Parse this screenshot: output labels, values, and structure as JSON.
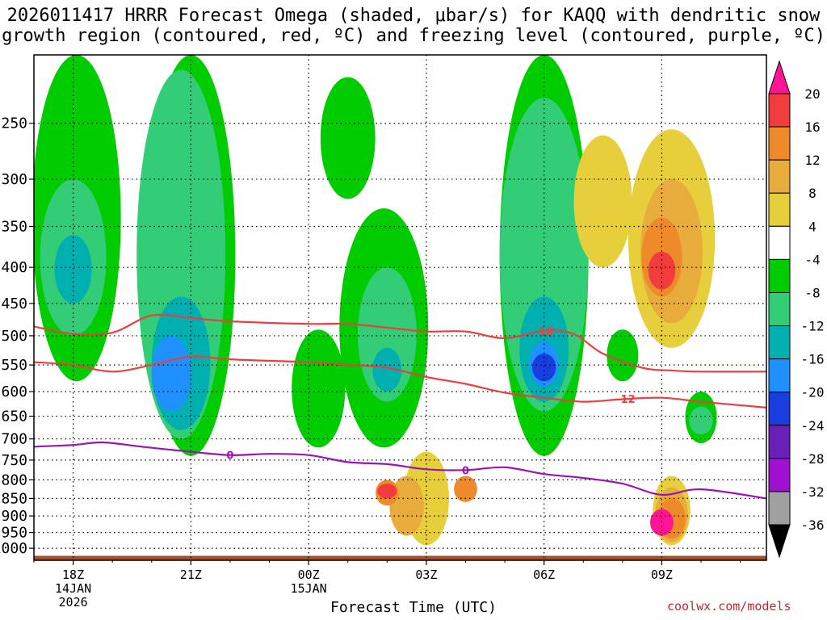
{
  "title_line1": "2026011417 HRRR Forecast Omega (shaded, μbar/s) for KAQQ with dendritic snow",
  "title_line2": "growth region (contoured, red, ºC) and freezing level (contoured, purple, ºC)",
  "xlabel": "Forecast Time (UTC)",
  "credit": "coolwx.com/models",
  "chart_data": {
    "type": "heatmap",
    "title": "2026011417 HRRR Forecast Omega (shaded, μbar/s) for KAQQ with dendritic snow growth region (contoured, red, ºC) and freezing level (contoured, purple, ºC)",
    "xlabel": "Forecast Time (UTC)",
    "ylabel": "",
    "y_scale": "log-pressure (inverted)",
    "xlim": [
      "2026-01-14 17:00",
      "2026-01-15 11:40"
    ],
    "ylim": [
      1040,
      200
    ],
    "grid": true,
    "x_ticks": [
      {
        "label": [
          "18Z",
          "14JAN",
          "2026"
        ],
        "time": "2026-01-14 18:00"
      },
      {
        "label": [
          "21Z"
        ],
        "time": "2026-01-14 21:00"
      },
      {
        "label": [
          "00Z",
          "15JAN"
        ],
        "time": "2026-01-15 00:00"
      },
      {
        "label": [
          "03Z"
        ],
        "time": "2026-01-15 03:00"
      },
      {
        "label": [
          "06Z"
        ],
        "time": "2026-01-15 06:00"
      },
      {
        "label": [
          "09Z"
        ],
        "time": "2026-01-15 09:00"
      }
    ],
    "y_ticks": [
      250,
      300,
      350,
      400,
      450,
      500,
      550,
      600,
      650,
      700,
      750,
      800,
      850,
      900,
      950,
      1000
    ],
    "colorbar": {
      "labels": [
        20,
        16,
        12,
        8,
        4,
        -4,
        -8,
        -12,
        -16,
        -20,
        -24,
        -28,
        -32,
        -36
      ],
      "colors": [
        "#ff1493",
        "#f03c3c",
        "#ef8a2a",
        "#e8ac3c",
        "#e6cf3a",
        "#ffffff",
        "#00cc00",
        "#33cc77",
        "#00b0b0",
        "#1e90ff",
        "#1a3de0",
        "#6a20b8",
        "#a010d0",
        "#a0a0a0",
        "#000000"
      ]
    },
    "omega_regions": [
      {
        "color": "#00cc00",
        "time": "2026-01-14 18:05",
        "p_top": 200,
        "p_bottom": 580
      },
      {
        "color": "#00cc00",
        "time": "2026-01-14 21:00",
        "p_top": 200,
        "p_bottom": 740
      },
      {
        "color": "#33cc77",
        "time": "2026-01-14 18:00",
        "p_top": 300,
        "p_bottom": 500
      },
      {
        "color": "#00b0b0",
        "time": "2026-01-14 18:00",
        "p_top": 360,
        "p_bottom": 450
      },
      {
        "color": "#33cc77",
        "time": "2026-01-14 20:45",
        "p_top": 210,
        "p_bottom": 700
      },
      {
        "color": "#00b0b0",
        "time": "2026-01-14 20:45",
        "p_top": 440,
        "p_bottom": 680
      },
      {
        "color": "#1e90ff",
        "time": "2026-01-14 20:30",
        "p_top": 500,
        "p_bottom": 640
      },
      {
        "color": "#00cc00",
        "time": "2026-01-15 01:00",
        "p_top": 215,
        "p_bottom": 320
      },
      {
        "color": "#00cc00",
        "time": "2026-01-15 00:15",
        "p_top": 490,
        "p_bottom": 720
      },
      {
        "color": "#00cc00",
        "time": "2026-01-15 01:55",
        "p_top": 330,
        "p_bottom": 720
      },
      {
        "color": "#33cc77",
        "time": "2026-01-15 02:00",
        "p_top": 400,
        "p_bottom": 620
      },
      {
        "color": "#00b0b0",
        "time": "2026-01-15 02:00",
        "p_top": 520,
        "p_bottom": 600
      },
      {
        "color": "#00cc00",
        "time": "2026-01-15 06:00",
        "p_top": 200,
        "p_bottom": 740
      },
      {
        "color": "#33cc77",
        "time": "2026-01-15 06:00",
        "p_top": 230,
        "p_bottom": 640
      },
      {
        "color": "#00b0b0",
        "time": "2026-01-15 06:00",
        "p_top": 440,
        "p_bottom": 620
      },
      {
        "color": "#1e90ff",
        "time": "2026-01-15 06:00",
        "p_top": 510,
        "p_bottom": 590
      },
      {
        "color": "#1a3de0",
        "time": "2026-01-15 06:00",
        "p_top": 530,
        "p_bottom": 580
      },
      {
        "color": "#00cc00",
        "time": "2026-01-15 08:00",
        "p_top": 490,
        "p_bottom": 580
      },
      {
        "color": "#00cc00",
        "time": "2026-01-15 10:00",
        "p_top": 600,
        "p_bottom": 710
      },
      {
        "color": "#33cc77",
        "time": "2026-01-15 10:00",
        "p_top": 630,
        "p_bottom": 690
      },
      {
        "color": "#e6cf3a",
        "time": "2026-01-15 07:30",
        "p_top": 260,
        "p_bottom": 400
      },
      {
        "color": "#e6cf3a",
        "time": "2026-01-15 09:15",
        "p_top": 255,
        "p_bottom": 520
      },
      {
        "color": "#e8ac3c",
        "time": "2026-01-15 09:15",
        "p_top": 300,
        "p_bottom": 480
      },
      {
        "color": "#ef8a2a",
        "time": "2026-01-15 09:00",
        "p_top": 340,
        "p_bottom": 440
      },
      {
        "color": "#f03c3c",
        "time": "2026-01-15 09:00",
        "p_top": 380,
        "p_bottom": 430
      },
      {
        "color": "#e6cf3a",
        "time": "2026-01-15 03:00",
        "p_top": 730,
        "p_bottom": 990
      },
      {
        "color": "#e8ac3c",
        "time": "2026-01-15 02:30",
        "p_top": 790,
        "p_bottom": 960
      },
      {
        "color": "#ef8a2a",
        "time": "2026-01-15 02:00",
        "p_top": 800,
        "p_bottom": 870
      },
      {
        "color": "#f03c3c",
        "time": "2026-01-15 02:00",
        "p_top": 810,
        "p_bottom": 850
      },
      {
        "color": "#ef8a2a",
        "time": "2026-01-15 04:00",
        "p_top": 790,
        "p_bottom": 860
      },
      {
        "color": "#e6cf3a",
        "time": "2026-01-15 09:15",
        "p_top": 790,
        "p_bottom": 990
      },
      {
        "color": "#e8ac3c",
        "time": "2026-01-15 09:15",
        "p_top": 820,
        "p_bottom": 980
      },
      {
        "color": "#ef8a2a",
        "time": "2026-01-15 09:15",
        "p_top": 850,
        "p_bottom": 970
      },
      {
        "color": "#ff1493",
        "time": "2026-01-15 09:00",
        "p_top": 880,
        "p_bottom": 960
      }
    ],
    "series": [
      {
        "name": "-18",
        "color": "#e84040",
        "points": [
          [
            "2026-01-14 17:00",
            485
          ],
          [
            "2026-01-14 18:00",
            497
          ],
          [
            "2026-01-14 19:00",
            495
          ],
          [
            "2026-01-14 20:00",
            468
          ],
          [
            "2026-01-14 21:00",
            472
          ],
          [
            "2026-01-14 22:00",
            477
          ],
          [
            "2026-01-15 00:00",
            481
          ],
          [
            "2026-01-15 01:00",
            481
          ],
          [
            "2026-01-15 02:00",
            487
          ],
          [
            "2026-01-15 03:00",
            493
          ],
          [
            "2026-01-15 04:00",
            493
          ],
          [
            "2026-01-15 05:00",
            504
          ],
          [
            "2026-01-15 06:00",
            492
          ],
          [
            "2026-01-15 06:45",
            497
          ],
          [
            "2026-01-15 07:30",
            530
          ],
          [
            "2026-01-15 08:30",
            555
          ],
          [
            "2026-01-15 09:15",
            560
          ],
          [
            "2026-01-15 10:00",
            562
          ],
          [
            "2026-01-15 11:40",
            562
          ]
        ]
      },
      {
        "name": "-12",
        "color": "#e84040",
        "points": [
          [
            "2026-01-14 17:00",
            545
          ],
          [
            "2026-01-14 18:00",
            550
          ],
          [
            "2026-01-14 19:00",
            562
          ],
          [
            "2026-01-14 20:00",
            550
          ],
          [
            "2026-01-14 21:00",
            535
          ],
          [
            "2026-01-14 22:00",
            540
          ],
          [
            "2026-01-15 00:00",
            545
          ],
          [
            "2026-01-15 01:00",
            550
          ],
          [
            "2026-01-15 02:00",
            555
          ],
          [
            "2026-01-15 03:00",
            572
          ],
          [
            "2026-01-15 04:00",
            585
          ],
          [
            "2026-01-15 05:00",
            602
          ],
          [
            "2026-01-15 06:00",
            612
          ],
          [
            "2026-01-15 07:00",
            620
          ],
          [
            "2026-01-15 08:00",
            615
          ],
          [
            "2026-01-15 09:00",
            612
          ],
          [
            "2026-01-15 10:00",
            620
          ],
          [
            "2026-01-15 11:40",
            632
          ]
        ]
      },
      {
        "name": "0",
        "color": "#9a14b4",
        "points": [
          [
            "2026-01-14 17:00",
            718
          ],
          [
            "2026-01-14 18:00",
            714
          ],
          [
            "2026-01-14 18:45",
            708
          ],
          [
            "2026-01-14 19:45",
            718
          ],
          [
            "2026-01-14 21:00",
            730
          ],
          [
            "2026-01-14 22:00",
            738
          ],
          [
            "2026-01-14 23:00",
            735
          ],
          [
            "2026-01-15 00:00",
            738
          ],
          [
            "2026-01-15 01:00",
            755
          ],
          [
            "2026-01-15 02:00",
            760
          ],
          [
            "2026-01-15 03:00",
            773
          ],
          [
            "2026-01-15 04:00",
            775
          ],
          [
            "2026-01-15 05:00",
            768
          ],
          [
            "2026-01-15 06:00",
            785
          ],
          [
            "2026-01-15 07:00",
            795
          ],
          [
            "2026-01-15 08:00",
            810
          ],
          [
            "2026-01-15 09:00",
            840
          ],
          [
            "2026-01-15 10:00",
            825
          ],
          [
            "2026-01-15 11:40",
            850
          ]
        ]
      }
    ],
    "contour_labels": [
      {
        "text": "-18",
        "time": "2026-01-15 06:00",
        "p": 493,
        "color": "#e84040"
      },
      {
        "text": "-12",
        "time": "2026-01-15 08:05",
        "p": 614,
        "color": "#e84040"
      },
      {
        "text": "0",
        "time": "2026-01-14 22:00",
        "p": 738,
        "color": "#9a14b4"
      },
      {
        "text": "0",
        "time": "2026-01-15 04:00",
        "p": 775,
        "color": "#9a14b4"
      }
    ],
    "terrain_color": "#a0522d"
  }
}
